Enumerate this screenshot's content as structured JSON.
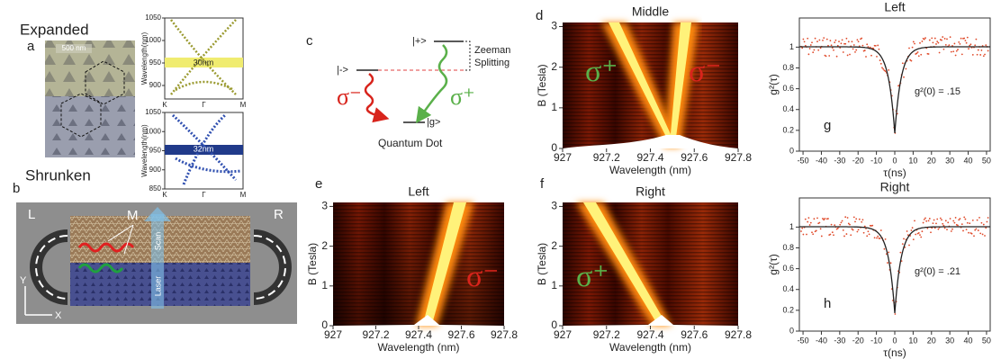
{
  "a": {
    "label": "a",
    "expanded": "Expanded",
    "shrunken": "Shrunken",
    "scale_bar": "500 nm",
    "band_top": {
      "ylabel": "Wavelength(nm)",
      "ylim": [
        870,
        1050
      ],
      "yticks": [
        900,
        950,
        1000,
        1050
      ],
      "xticks": [
        "K",
        "Γ",
        "M"
      ],
      "gap": "30nm"
    },
    "band_bottom": {
      "ylabel": "Wavelength(nm)",
      "ylim": [
        850,
        1050
      ],
      "yticks": [
        850,
        900,
        950,
        1000,
        1050
      ],
      "xticks": [
        "K",
        "Γ",
        "M"
      ],
      "gap": "32nm"
    }
  },
  "b": {
    "label": "b",
    "left": "L",
    "middle": "M",
    "right": "R",
    "scan": "Scan",
    "laser": "Laser",
    "y_axis": "Y",
    "x_axis": "X"
  },
  "c": {
    "label": "c",
    "plus": "|+>",
    "minus": "|->",
    "ground": "|g>",
    "zeeman": "Zeeman",
    "splitting": "Splitting",
    "sigma_minus": "σ⁻",
    "sigma_plus": "σ⁺",
    "caption": "Quantum Dot"
  },
  "d": {
    "label": "d",
    "title": "Middle",
    "ylabel": "B (Tesla)",
    "xlabel": "Wavelength (nm)",
    "xlim": [
      927,
      927.8
    ],
    "xticks": [
      927,
      927.2,
      927.4,
      927.6,
      927.8
    ],
    "ylim": [
      0,
      3.1
    ],
    "yticks": [
      0,
      1,
      2,
      3
    ],
    "sigma_plus": "σ⁺",
    "sigma_minus": "σ⁻"
  },
  "e": {
    "label": "e",
    "title": "Left",
    "ylabel": "B (Tesla)",
    "xlabel": "Wavelength (nm)",
    "xlim": [
      927,
      927.8
    ],
    "xticks": [
      927,
      927.2,
      927.4,
      927.6,
      927.8
    ],
    "ylim": [
      0,
      3.1
    ],
    "yticks": [
      0,
      1,
      2,
      3
    ],
    "sigma": "σ⁻"
  },
  "f": {
    "label": "f",
    "title": "Right",
    "ylabel": "B (Tesla)",
    "xlabel": "Wavelength (nm)",
    "xlim": [
      927,
      927.8
    ],
    "xticks": [
      927,
      927.2,
      927.4,
      927.6,
      927.8
    ],
    "ylim": [
      0,
      3.1
    ],
    "yticks": [
      0,
      1,
      2,
      3
    ],
    "sigma": "σ⁺"
  },
  "g": {
    "label": "g",
    "title": "Left",
    "ylabel": "g²(τ)",
    "xlabel": "τ(ns)",
    "xlim": [
      -52,
      52
    ],
    "xticks": [
      -50,
      -40,
      -30,
      -20,
      -10,
      0,
      10,
      20,
      30,
      40,
      50
    ],
    "ylim": [
      0,
      1.28
    ],
    "yticks": [
      0,
      0.2,
      0.4,
      0.6,
      0.8,
      1
    ],
    "annotation": "g²(0) = .15"
  },
  "h": {
    "label": "h",
    "title": "Right",
    "ylabel": "g²(τ)",
    "xlabel": "τ(ns)",
    "xlim": [
      -52,
      52
    ],
    "xticks": [
      -50,
      -40,
      -30,
      -20,
      -10,
      0,
      10,
      20,
      30,
      40,
      50
    ],
    "ylim": [
      0,
      1.28
    ],
    "yticks": [
      0,
      0.2,
      0.4,
      0.6,
      0.8,
      1
    ],
    "annotation": "g²(0) = .21"
  }
}
